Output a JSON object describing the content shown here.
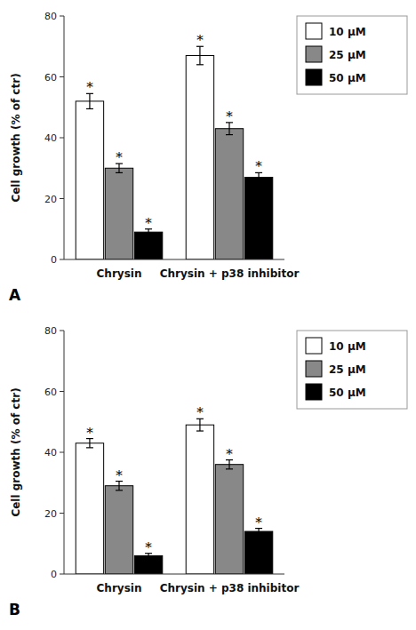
{
  "chart_data": [
    {
      "type": "bar",
      "title": "A",
      "categories": [
        "Chrysin",
        "Chrysin + p38 inhibitor"
      ],
      "series": [
        {
          "name": "10 μM",
          "color": "#ffffff",
          "values": [
            52,
            67
          ],
          "errors": [
            2.5,
            3.0
          ],
          "annotations": [
            "*",
            "*"
          ]
        },
        {
          "name": "25 μM",
          "color": "#888888",
          "values": [
            30,
            43
          ],
          "errors": [
            1.5,
            2.0
          ],
          "annotations": [
            "*",
            "*"
          ]
        },
        {
          "name": "50 μM",
          "color": "#000000",
          "values": [
            9,
            27
          ],
          "errors": [
            1.0,
            1.5
          ],
          "annotations": [
            "*",
            "*"
          ]
        }
      ],
      "ylabel": "Cell growth (% of ctr)",
      "ylim": [
        0,
        80
      ],
      "yticks": [
        0,
        20,
        40,
        60,
        80
      ],
      "grid": false,
      "legend": "right"
    },
    {
      "type": "bar",
      "title": "B",
      "categories": [
        "Chrysin",
        "Chrysin + p38 inhibitor"
      ],
      "series": [
        {
          "name": "10 μM",
          "color": "#ffffff",
          "values": [
            43,
            49
          ],
          "errors": [
            1.5,
            2.0
          ],
          "annotations": [
            "*",
            "*"
          ]
        },
        {
          "name": "25 μM",
          "color": "#888888",
          "values": [
            29,
            36
          ],
          "errors": [
            1.5,
            1.5
          ],
          "annotations": [
            "*",
            "*"
          ]
        },
        {
          "name": "50 μM",
          "color": "#000000",
          "values": [
            6,
            14
          ],
          "errors": [
            0.8,
            1.0
          ],
          "annotations": [
            "*",
            "*"
          ]
        }
      ],
      "ylabel": "Cell growth (% of ctr)",
      "ylim": [
        0,
        80
      ],
      "yticks": [
        0,
        20,
        40,
        60,
        80
      ],
      "grid": false,
      "legend": "right"
    }
  ]
}
